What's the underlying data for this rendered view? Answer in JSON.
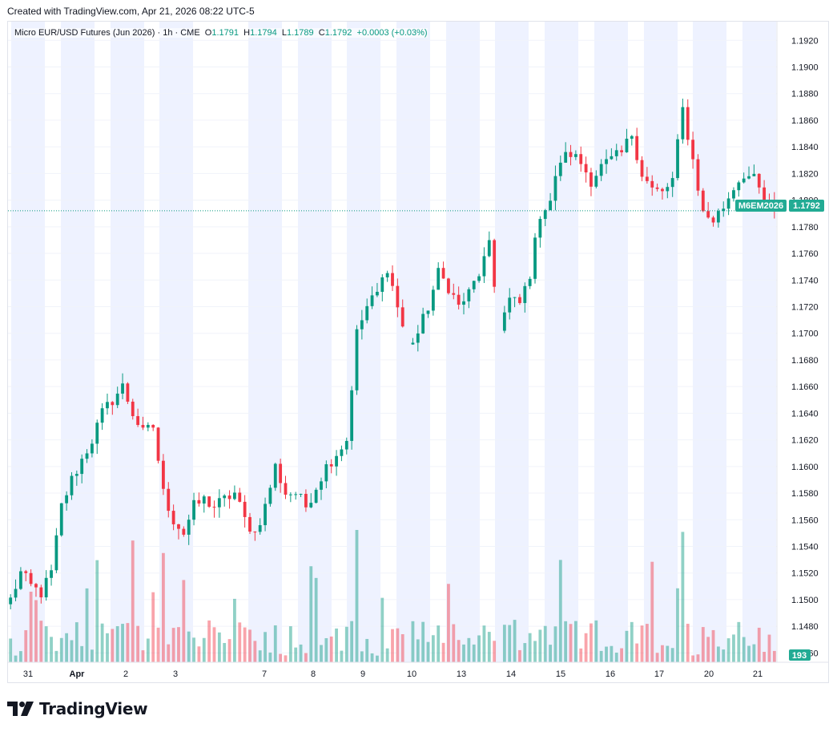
{
  "header": {
    "created_text": "Created with TradingView.com, Apr 21, 2026 08:22 UTC-5"
  },
  "legend": {
    "instrument": "Micro EUR/USD Futures (Jun 2026) · 1h · CME",
    "open_label": "O",
    "open_value": "1.1791",
    "high_label": "H",
    "high_value": "1.1794",
    "low_label": "L",
    "low_value": "1.1789",
    "close_label": "C",
    "close_value": "1.1792",
    "change": "+0.0003 (+0.03%)"
  },
  "price_tag": {
    "symbol": "M6EM2026",
    "price": "1.1792"
  },
  "volume_tag": "193",
  "logo_text": "TradingView",
  "colors": {
    "up": "#089981",
    "down": "#f23645",
    "session_band": "#eef2ff",
    "symbol_tag": "#22ab94",
    "price_line": "#089981"
  },
  "chart_data": {
    "type": "candlestick",
    "title": "Micro EUR/USD Futures (Jun 2026)",
    "interval": "1h",
    "exchange": "CME",
    "grid": true,
    "legend_position": "top-left",
    "y_axis": {
      "side": "right",
      "range": [
        1.1453,
        1.1934
      ],
      "ticks": [
        "1.1920",
        "1.1900",
        "1.1880",
        "1.1860",
        "1.1840",
        "1.1820",
        "1.1800",
        "1.1780",
        "1.1760",
        "1.1740",
        "1.1720",
        "1.1700",
        "1.1680",
        "1.1660",
        "1.1640",
        "1.1620",
        "1.1600",
        "1.1580",
        "1.1560",
        "1.1540",
        "1.1520",
        "1.1500",
        "1.1480",
        "1.1460"
      ]
    },
    "x_axis": {
      "tick_labels": [
        "31",
        "Apr",
        "2",
        "3",
        "7",
        "8",
        "9",
        "10",
        "13",
        "14",
        "15",
        "16",
        "17",
        "20",
        "21"
      ]
    },
    "last_price": 1.1792,
    "last_volume": 193,
    "price_path": [
      [
        0,
        1.15
      ],
      [
        2,
        1.152
      ],
      [
        4,
        1.151
      ],
      [
        6,
        1.1505
      ],
      [
        8,
        1.152
      ],
      [
        10,
        1.157
      ],
      [
        12,
        1.159
      ],
      [
        14,
        1.1605
      ],
      [
        16,
        1.162
      ],
      [
        18,
        1.164
      ],
      [
        20,
        1.165
      ],
      [
        22,
        1.166
      ],
      [
        24,
        1.164
      ],
      [
        26,
        1.1625
      ],
      [
        28,
        1.163
      ],
      [
        30,
        1.158
      ],
      [
        32,
        1.156
      ],
      [
        34,
        1.155
      ],
      [
        36,
        1.157
      ],
      [
        38,
        1.1575
      ],
      [
        40,
        1.157
      ],
      [
        42,
        1.1575
      ],
      [
        44,
        1.158
      ],
      [
        46,
        1.156
      ],
      [
        48,
        1.155
      ],
      [
        50,
        1.157
      ],
      [
        52,
        1.16
      ],
      [
        54,
        1.158
      ],
      [
        56,
        1.158
      ],
      [
        58,
        1.157
      ],
      [
        60,
        1.1585
      ],
      [
        62,
        1.16
      ],
      [
        64,
        1.161
      ],
      [
        66,
        1.162
      ],
      [
        68,
        1.17
      ],
      [
        70,
        1.172
      ],
      [
        72,
        1.173
      ],
      [
        74,
        1.175
      ],
      [
        76,
        1.172
      ],
      [
        78,
        1.169
      ],
      [
        80,
        1.17
      ],
      [
        82,
        1.172
      ],
      [
        84,
        1.1745
      ],
      [
        86,
        1.1735
      ],
      [
        88,
        1.172
      ],
      [
        90,
        1.173
      ],
      [
        92,
        1.1745
      ],
      [
        94,
        1.1765
      ],
      [
        96,
        1.1705
      ],
      [
        98,
        1.1725
      ],
      [
        100,
        1.1722
      ],
      [
        102,
        1.1745
      ],
      [
        104,
        1.179
      ],
      [
        106,
        1.18
      ],
      [
        108,
        1.183
      ],
      [
        110,
        1.1835
      ],
      [
        112,
        1.1828
      ],
      [
        114,
        1.1815
      ],
      [
        116,
        1.1825
      ],
      [
        118,
        1.183
      ],
      [
        120,
        1.1835
      ],
      [
        122,
        1.185
      ],
      [
        124,
        1.182
      ],
      [
        126,
        1.1808
      ],
      [
        128,
        1.1805
      ],
      [
        130,
        1.1815
      ],
      [
        132,
        1.1868
      ],
      [
        134,
        1.183
      ],
      [
        136,
        1.179
      ],
      [
        138,
        1.1785
      ],
      [
        140,
        1.1795
      ],
      [
        142,
        1.181
      ],
      [
        144,
        1.182
      ],
      [
        146,
        1.1815
      ],
      [
        148,
        1.18
      ],
      [
        150,
        1.1792
      ]
    ],
    "session_gaps_at": [
      77.5,
      96
    ]
  }
}
